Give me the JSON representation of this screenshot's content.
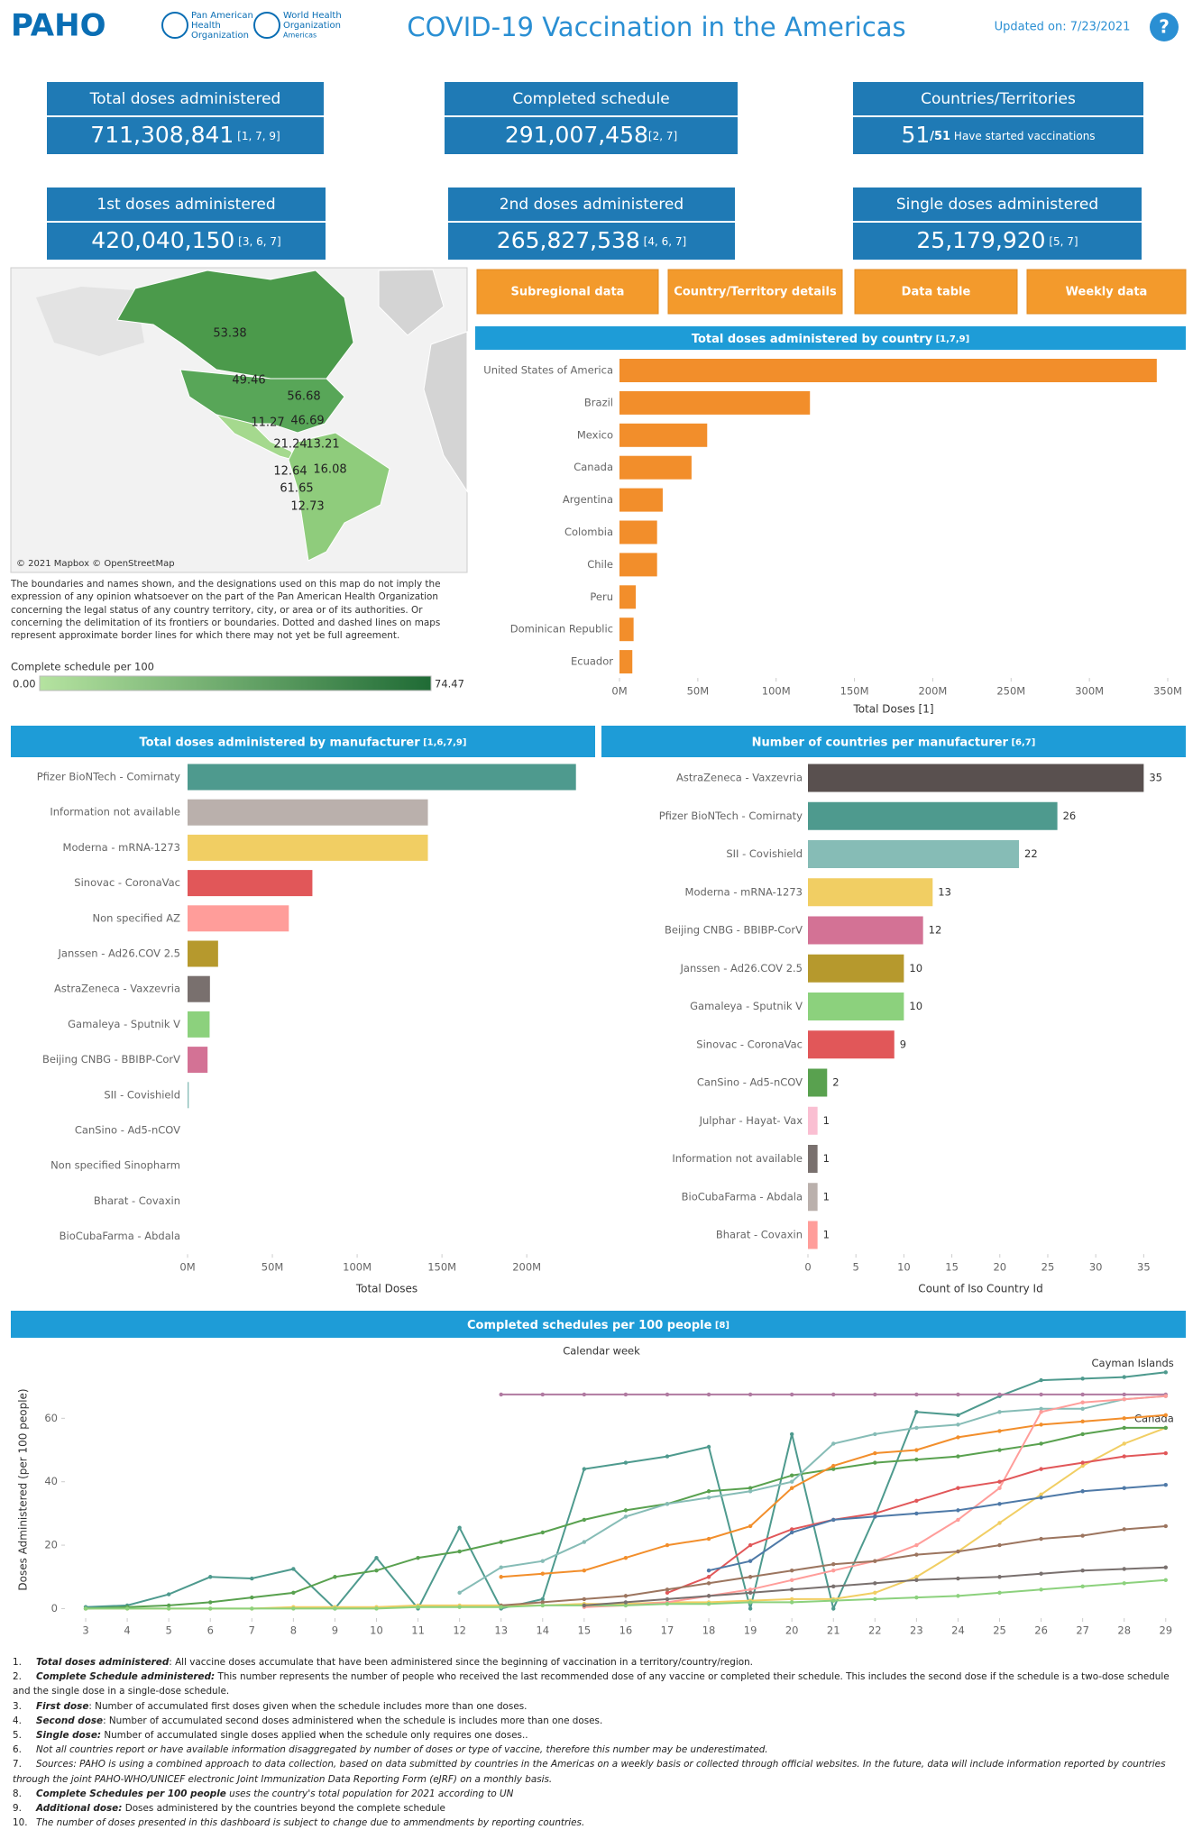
{
  "header": {
    "logo": "PAHO",
    "org_left": [
      "Pan American",
      "Health",
      "Organization"
    ],
    "org_right": [
      "World Health",
      "Organization",
      "Americas"
    ],
    "title": "COVID-19 Vaccination in the Americas",
    "updated": "Updated on: 7/23/2021",
    "help": "?"
  },
  "kpis": [
    {
      "title": "Total doses administered",
      "value": "711,308,841",
      "refs": " [1, 7, 9]"
    },
    {
      "title": "Completed schedule",
      "value": "291,007,458",
      "refs": "[2, 7]"
    },
    {
      "title": "Countries/Territories",
      "value": "51",
      "suffix": "/51",
      "note": "  Have started vaccinations"
    },
    {
      "title": "1st doses administered",
      "value": "420,040,150",
      "refs": " [3, 6, 7]"
    },
    {
      "title": "2nd doses administered",
      "value": "265,827,538",
      "refs": " [4, 6, 7]"
    },
    {
      "title": "Single doses administered",
      "value": "25,179,920",
      "refs": "  [5, 7]"
    }
  ],
  "buttons": [
    "Subregional data",
    "Country/Territory details",
    "Data table",
    "Weekly data"
  ],
  "map": {
    "credit": "© 2021 Mapbox © OpenStreetMap",
    "labels": [
      53.38,
      49.46,
      56.68,
      11.27,
      46.69,
      21.24,
      13.21,
      12.64,
      16.08,
      61.65,
      12.73
    ],
    "disclaimer": "The boundaries and names shown, and the designations used on this map do not imply the expression of any opinion whatsoever on the part of the Pan American Health Organization concerning the legal status of any country territory, city, or area or of its authorities. Or concerning the delimitation of its frontiers or boundaries. Dotted and dashed lines on maps represent approximate border lines for which there may not yet be full agreement.",
    "legend_title": "Complete schedule per 100",
    "legend_min": "0.00",
    "legend_max": "74.47",
    "color_low": "#b5e3a0",
    "color_high": "#1f6b35"
  },
  "chart_data": [
    {
      "type": "bar",
      "orientation": "horizontal",
      "title": "Total doses administered by country",
      "title_note": " [1,7,9]",
      "color": "#f28e2b",
      "categories": [
        "United States of America",
        "Brazil",
        "Mexico",
        "Canada",
        "Argentina",
        "Colombia",
        "Chile",
        "Peru",
        "Dominican Republic",
        "Ecuador"
      ],
      "values": [
        343000000,
        121600000,
        56000000,
        46000000,
        27600000,
        24000000,
        24000000,
        10400000,
        9000000,
        8200000
      ],
      "xlim": [
        0,
        350000000
      ],
      "xticks": [
        {
          "value": 0,
          "label": "0M"
        },
        {
          "value": 50000000,
          "label": "50M"
        },
        {
          "value": 100000000,
          "label": "100M"
        },
        {
          "value": 150000000,
          "label": "150M"
        },
        {
          "value": 200000000,
          "label": "200M"
        },
        {
          "value": 250000000,
          "label": "250M"
        },
        {
          "value": 300000000,
          "label": "300M"
        },
        {
          "value": 350000000,
          "label": "350M"
        }
      ],
      "xlabel": "Total Doses [1]"
    },
    {
      "type": "bar",
      "orientation": "horizontal",
      "title": "Total doses administered by manufacturer",
      "title_note": " [1,6,7,9]",
      "categories": [
        "Pfizer BioNTech - Comirnaty",
        "Information not available",
        "Moderna - mRNA-1273",
        "Sinovac - CoronaVac",
        "Non specified AZ",
        "Janssen - Ad26.COV 2.5",
        "AstraZeneca - Vaxzevria",
        "Gamaleya - Sputnik V",
        "Beijing CNBG - BBIBP-CorV",
        "SII - Covishield",
        "CanSino - Ad5-nCOV",
        "Non specified Sinopharm",
        "Bharat - Covaxin",
        "BioCubaFarma - Abdala"
      ],
      "values": [
        229000000,
        141700000,
        141700000,
        73600000,
        59700000,
        18000000,
        13200000,
        13000000,
        11800000,
        700000,
        0,
        0,
        0,
        0
      ],
      "colors": [
        "#4e9a8e",
        "#bab0ac",
        "#f1ce63",
        "#e15759",
        "#ff9d9a",
        "#b6992d",
        "#79706e",
        "#8cd17d",
        "#d37295",
        "#86bcb6",
        "#59a14f",
        "#9d7660",
        "#ff9d9a",
        "#bab0ac"
      ],
      "xlim": [
        0,
        235000000
      ],
      "xticks": [
        {
          "value": 0,
          "label": "0M"
        },
        {
          "value": 50000000,
          "label": "50M"
        },
        {
          "value": 100000000,
          "label": "100M"
        },
        {
          "value": 150000000,
          "label": "150M"
        },
        {
          "value": 200000000,
          "label": "200M"
        }
      ],
      "xlabel": "Total Doses"
    },
    {
      "type": "bar",
      "orientation": "horizontal",
      "title": "Number of countries per manufacturer",
      "title_note": " [6,7]",
      "data_labels": true,
      "categories": [
        "AstraZeneca - Vaxzevria",
        "Pfizer BioNTech - Comirnaty",
        "SII - Covishield",
        "Moderna - mRNA-1273",
        "Beijing CNBG - BBIBP-CorV",
        "Janssen - Ad26.COV 2.5",
        "Gamaleya - Sputnik V",
        "Sinovac - CoronaVac",
        "CanSino - Ad5-nCOV",
        "Julphar - Hayat- Vax",
        "Information not available",
        "BioCubaFarma - Abdala",
        "Bharat - Covaxin"
      ],
      "values": [
        35,
        26,
        22,
        13,
        12,
        10,
        10,
        9,
        2,
        1,
        1,
        1,
        1
      ],
      "colors": [
        "#59504f",
        "#4e9a8e",
        "#86bcb6",
        "#f1ce63",
        "#d37295",
        "#b6992d",
        "#8cd17d",
        "#e15759",
        "#59a14f",
        "#fabfd2",
        "#79706e",
        "#bab0ac",
        "#ff9d9a"
      ],
      "xlim": [
        0,
        36
      ],
      "xticks": [
        0,
        5,
        10,
        15,
        20,
        25,
        30,
        35
      ],
      "xlabel": "Count of Iso Country Id"
    },
    {
      "type": "line",
      "title": "Completed schedules per 100 people",
      "title_note": " [8]",
      "subtitle": "Calendar week",
      "ylabel": "Doses Administered (per 100 people)",
      "x": [
        3,
        4,
        5,
        6,
        7,
        8,
        9,
        10,
        11,
        12,
        13,
        14,
        15,
        16,
        17,
        18,
        19,
        20,
        21,
        22,
        23,
        24,
        25,
        26,
        27,
        28,
        29
      ],
      "xlim": [
        2.5,
        29.2
      ],
      "xticks": [
        3,
        4,
        5,
        6,
        7,
        8,
        9,
        10,
        11,
        12,
        13,
        14,
        15,
        16,
        17,
        18,
        19,
        20,
        21,
        22,
        23,
        24,
        25,
        26,
        27,
        28,
        29
      ],
      "ylim": [
        -3,
        78
      ],
      "yticks": [
        0,
        20,
        40,
        60
      ],
      "series": [
        {
          "name": "Cayman Islands",
          "color": "#4e9a8e",
          "values": [
            0.5,
            1,
            4.5,
            10,
            9.5,
            12.5,
            0,
            16,
            0,
            25.5,
            0,
            3,
            44,
            46,
            48,
            51,
            0,
            55,
            0,
            29,
            62,
            61,
            67,
            72,
            72.5,
            73,
            74.5
          ]
        },
        {
          "color": "#b07aa1",
          "values": [
            null,
            null,
            null,
            null,
            null,
            null,
            null,
            null,
            null,
            null,
            67.5,
            67.5,
            67.5,
            67.5,
            67.5,
            67.5,
            67.5,
            67.5,
            67.5,
            67.5,
            67.5,
            67.5,
            67.5,
            67.5,
            67.5,
            67.5,
            67.5
          ]
        },
        {
          "name": "Canada",
          "color": "#f1ce63",
          "values": [
            0,
            0,
            0,
            0,
            0,
            0.5,
            0.5,
            0.5,
            1,
            1,
            1,
            1,
            1.5,
            1.5,
            2,
            2,
            2.5,
            3,
            3,
            5,
            10,
            18,
            27,
            36,
            45,
            52,
            57
          ]
        },
        {
          "color": "#59a14f",
          "values": [
            0,
            0.5,
            1,
            2,
            3.5,
            5,
            10,
            12,
            16,
            18,
            21,
            24,
            28,
            31,
            33,
            37,
            38,
            42,
            44,
            46,
            47,
            48,
            50,
            52,
            55,
            57,
            57
          ]
        },
        {
          "color": "#f28e2b",
          "values": [
            null,
            null,
            null,
            null,
            null,
            null,
            null,
            null,
            null,
            null,
            10,
            11,
            12,
            16,
            20,
            22,
            26,
            38,
            45,
            49,
            50,
            54,
            56,
            58,
            59,
            60,
            61
          ]
        },
        {
          "color": "#86bcb6",
          "values": [
            null,
            null,
            null,
            null,
            null,
            null,
            null,
            null,
            null,
            5,
            13,
            15,
            21,
            29,
            33,
            35,
            37,
            40,
            52,
            55,
            57,
            58,
            62,
            63,
            63,
            66,
            67
          ]
        },
        {
          "color": "#ff9d9a",
          "values": [
            null,
            null,
            null,
            null,
            null,
            null,
            null,
            null,
            null,
            null,
            null,
            null,
            0.5,
            1,
            2,
            4,
            6,
            9,
            12,
            15,
            20,
            28,
            38,
            62,
            65,
            66,
            67
          ]
        },
        {
          "color": "#e15759",
          "values": [
            null,
            null,
            null,
            null,
            null,
            null,
            null,
            null,
            null,
            null,
            null,
            null,
            null,
            null,
            5,
            10,
            20,
            25,
            28,
            30,
            34,
            38,
            40,
            44,
            46,
            48,
            49
          ]
        },
        {
          "color": "#4e79a7",
          "values": [
            null,
            null,
            null,
            null,
            null,
            null,
            null,
            null,
            null,
            null,
            null,
            null,
            null,
            null,
            null,
            12,
            15,
            24,
            28,
            29,
            30,
            31,
            33,
            35,
            37,
            38,
            39
          ]
        },
        {
          "color": "#9c755f",
          "values": [
            null,
            null,
            null,
            null,
            null,
            null,
            null,
            null,
            null,
            null,
            1,
            2,
            3,
            4,
            6,
            8,
            10,
            12,
            14,
            15,
            17,
            18,
            20,
            22,
            23,
            25,
            26
          ]
        },
        {
          "color": "#8cd17d",
          "values": [
            0,
            0,
            0,
            0,
            0,
            0,
            0,
            0,
            0.5,
            0.5,
            0.5,
            1,
            1,
            1,
            1.5,
            1.5,
            2,
            2,
            2.5,
            3,
            3.5,
            4,
            5,
            6,
            7,
            8,
            9
          ]
        },
        {
          "color": "#79706e",
          "values": [
            null,
            null,
            null,
            null,
            null,
            null,
            null,
            null,
            null,
            null,
            null,
            null,
            1,
            2,
            3,
            4,
            5,
            6,
            7,
            8,
            9,
            9.5,
            10,
            11,
            12,
            12.5,
            13
          ]
        }
      ]
    }
  ],
  "notes": [
    {
      "num": "1.",
      "term": "Total doses administered",
      "text": ": All vaccine doses accumulate that have been administered since the beginning of vaccination in a territory/country/region."
    },
    {
      "num": "2.",
      "term": "Complete Schedule administered:",
      "text": " This number represents the number of people who received the last recommended dose of any vaccine or completed their schedule. This includes the second dose if the schedule is a two-dose schedule and the single dose in a single-dose schedule."
    },
    {
      "num": "3.",
      "term": "First dose",
      "text": ": Number of accumulated first doses given when the schedule includes more than one doses."
    },
    {
      "num": "4.",
      "term": "Second dose",
      "text": ": Number of accumulated second doses administered when the schedule is includes more than one doses."
    },
    {
      "num": "5.",
      "term": "Single dose:",
      "text": " Number of accumulated single doses applied when the schedule only requires one doses.."
    },
    {
      "num": "6.",
      "italic": true,
      "text": "Not all countries report or have available information disaggregated by number of doses or type of vaccine, therefore this number may be underestimated."
    },
    {
      "num": "7.",
      "italic": true,
      "text": "Sources: PAHO is using a combined approach to data collection, based on data submitted by countries in the Americas on a weekly basis or collected through official websites. In the future, data will include information reported by countries through the joint PAHO-WHO/UNICEF electronic Joint Immunization Data Reporting Form (eJRF) on a monthly basis."
    },
    {
      "num": "8.",
      "term": "Complete Schedules per 100 people",
      "italic": true,
      "text": " uses the country's total population for 2021 according to UN"
    },
    {
      "num": "9.",
      "term": "Additional dose:",
      "text": " Doses administered by the countries beyond the complete schedule"
    },
    {
      "num": "10.",
      "italic": true,
      "text": "The number of doses presented in this dashboard is subject to change due to ammendments by reporting countries."
    }
  ]
}
